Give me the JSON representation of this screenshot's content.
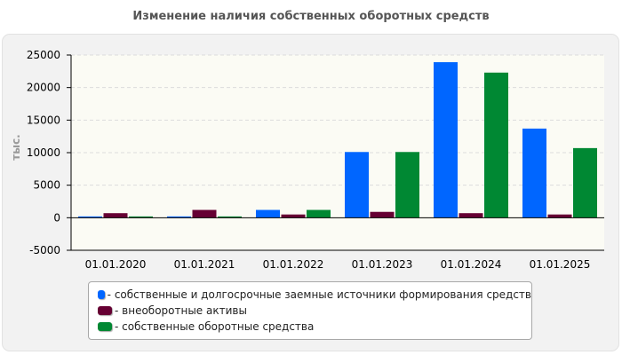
{
  "chart_data": {
    "type": "bar",
    "title": "Изменение наличия собственных оборотных средств",
    "ylabel": "тыс.",
    "xlabel": "",
    "ylim": [
      -5000,
      25000
    ],
    "yticks": [
      25000,
      20000,
      15000,
      10000,
      5000,
      0,
      -5000
    ],
    "grid": true,
    "legend_position": "bottom",
    "categories": [
      "01.01.2020",
      "01.01.2021",
      "01.01.2022",
      "01.01.2023",
      "01.01.2024",
      "01.01.2025"
    ],
    "series": [
      {
        "name": "собственные и долгосрочные заемные источники формирования средств",
        "color": "#0066ff",
        "values": [
          200,
          200,
          1200,
          10100,
          23900,
          13700
        ]
      },
      {
        "name": "внеоборотные активы",
        "color": "#660033",
        "values": [
          700,
          1200,
          500,
          900,
          700,
          500
        ]
      },
      {
        "name": "собственные оборотные средства",
        "color": "#008833",
        "values": [
          200,
          200,
          1200,
          10100,
          22300,
          10700
        ]
      }
    ]
  }
}
